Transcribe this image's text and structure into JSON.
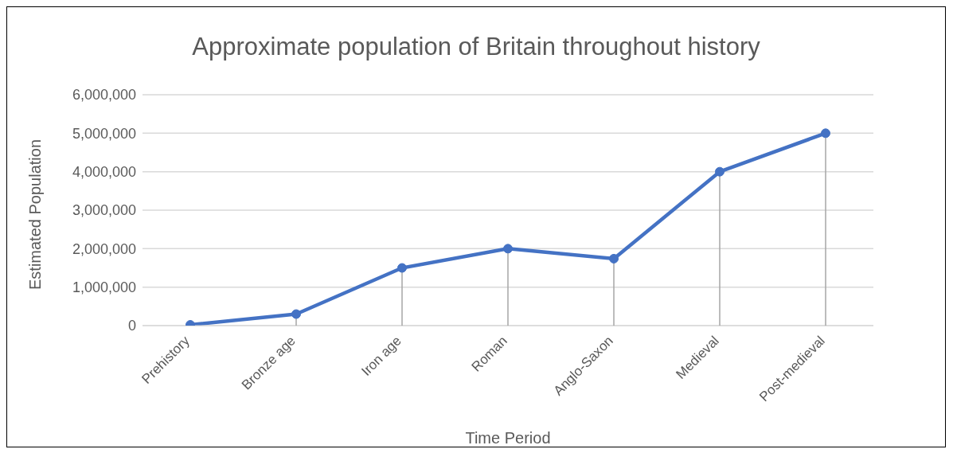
{
  "chart_data": {
    "type": "line",
    "title": "Approximate population of Britain throughout history",
    "xlabel": "Time Period",
    "ylabel": "Estimated Population",
    "categories": [
      "Prehistory",
      "Bronze age",
      "Iron age",
      "Roman",
      "Anglo-Saxon",
      "Medieval",
      "Post-medieval"
    ],
    "series": [
      {
        "color": "#4472c4",
        "values": [
          20000,
          300000,
          1500000,
          2000000,
          1740000,
          4000000,
          5000000
        ],
        "errors": [
          null,
          [
            0,
            300000
          ],
          [
            0,
            1500000
          ],
          [
            0,
            2000000
          ],
          [
            0,
            1740000
          ],
          [
            0,
            4000000
          ],
          [
            0,
            5000000
          ]
        ]
      }
    ],
    "ylim": [
      0,
      6000000
    ],
    "yticks": [
      0,
      {
        "value": 1000000,
        "label": "1,000,000"
      },
      {
        "value": 2000000,
        "label": "2,000,000"
      },
      {
        "value": 3000000,
        "label": "3,000,000"
      },
      {
        "value": 4000000,
        "label": "4,000,000"
      },
      {
        "value": 5000000,
        "label": "5,000,000"
      },
      {
        "value": 6000000,
        "label": "6,000,000"
      }
    ],
    "grid": "y",
    "marker": "circle",
    "line_style": "solid",
    "legend": false
  }
}
